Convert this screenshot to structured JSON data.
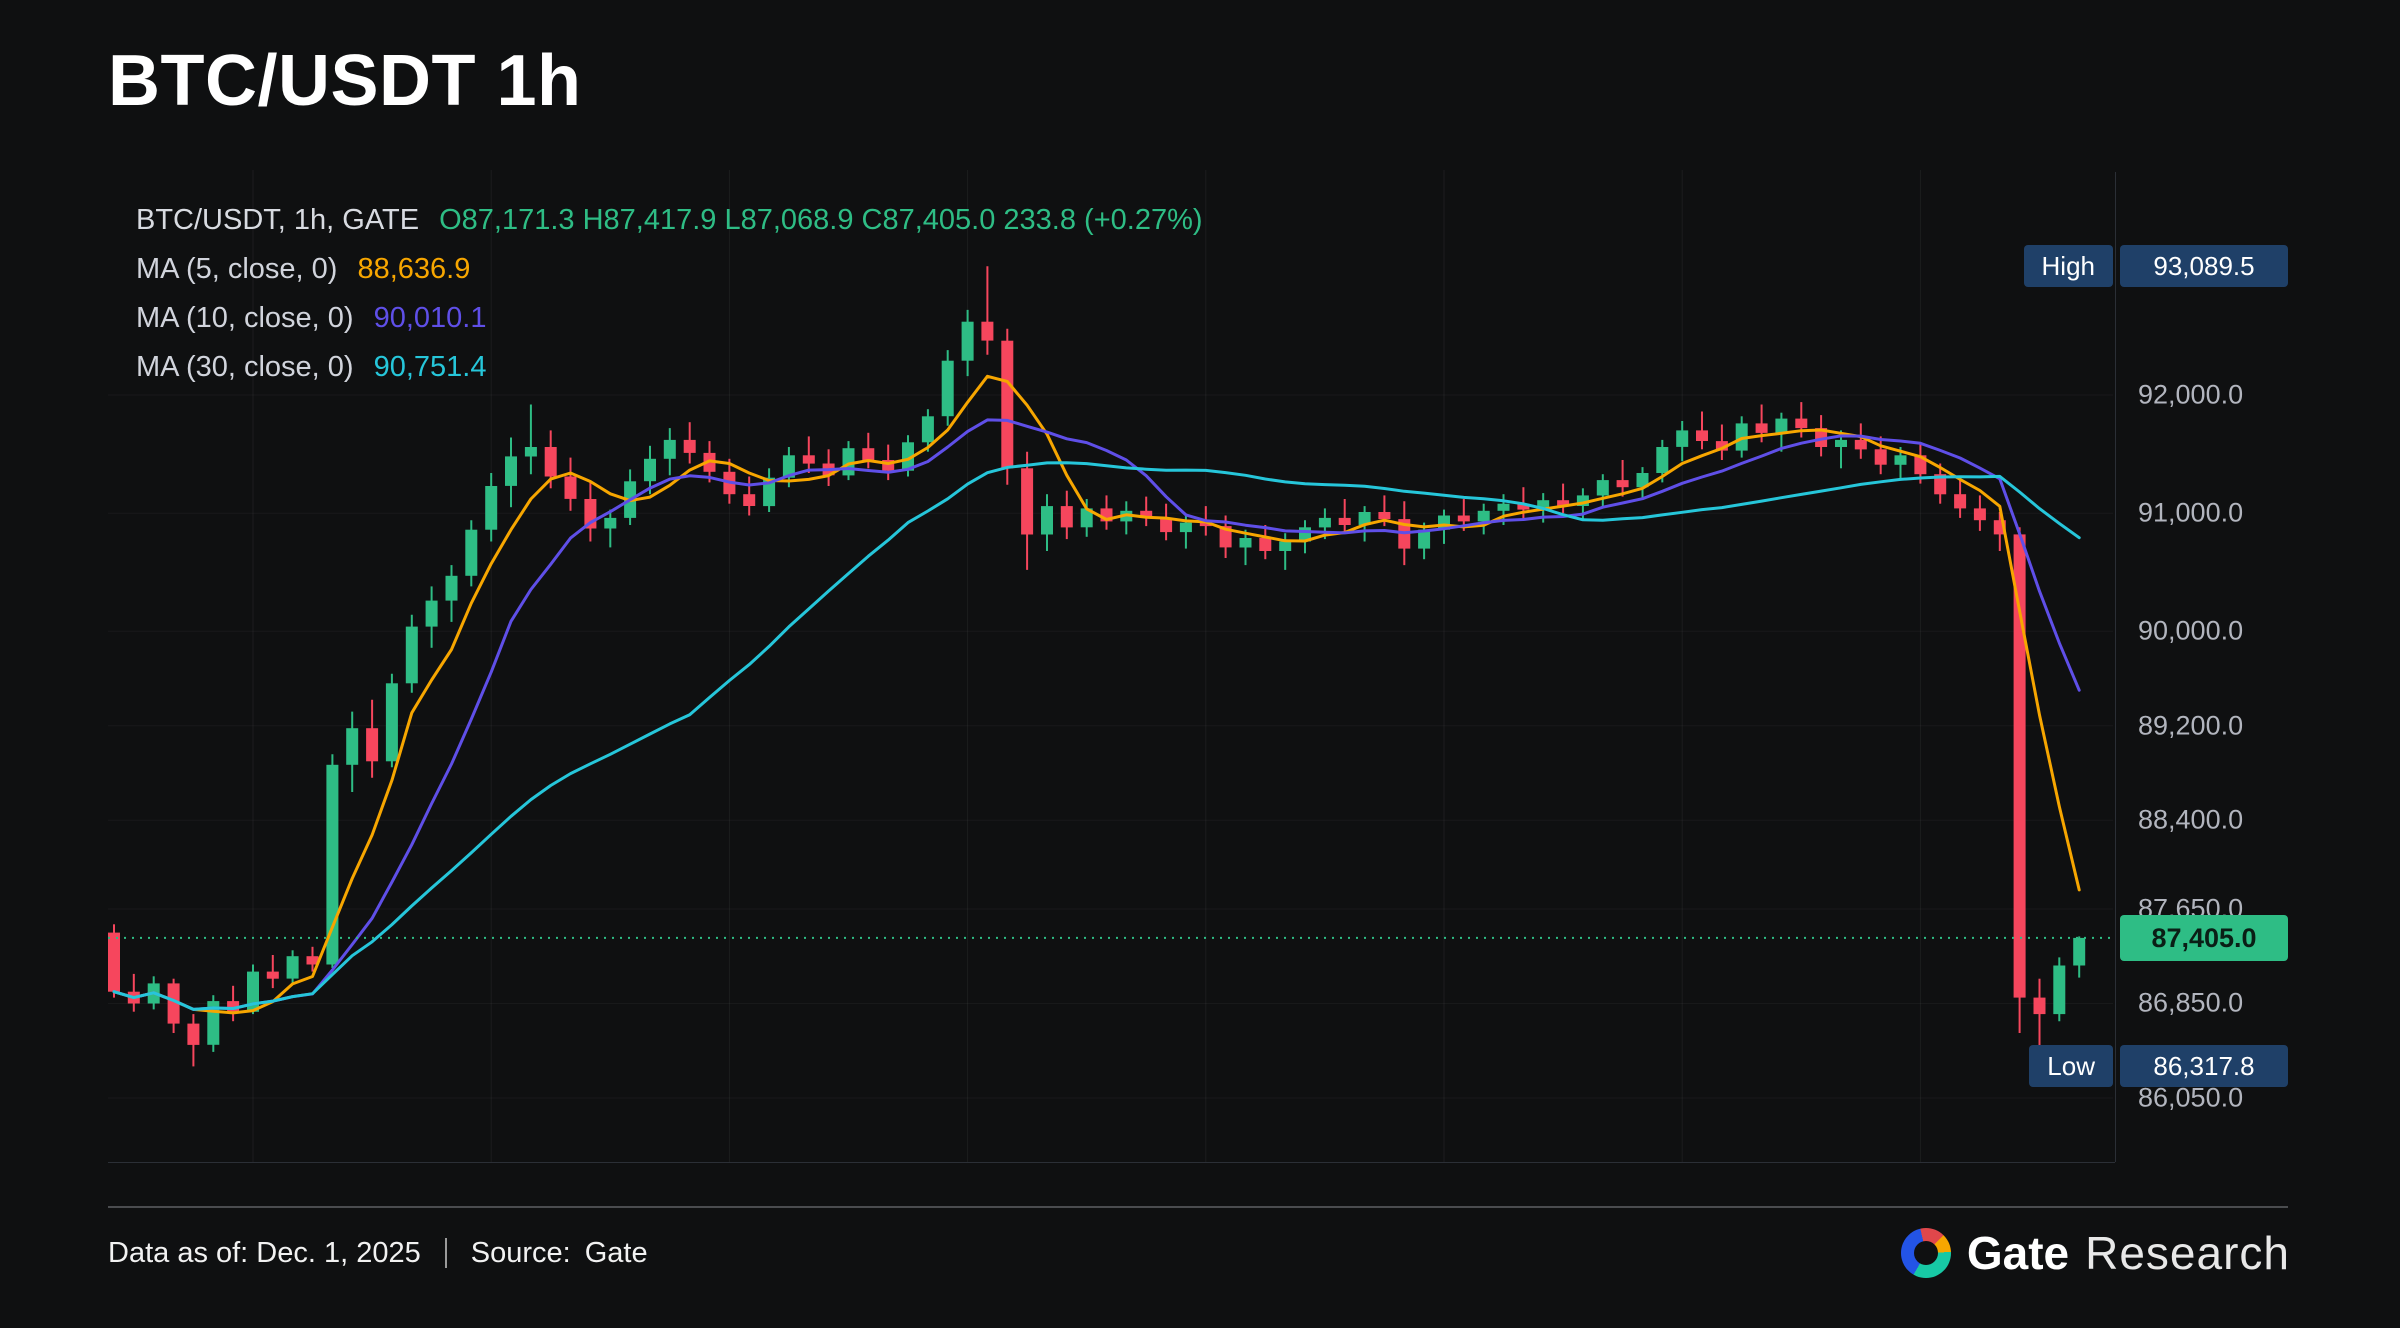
{
  "page": {
    "title": "BTC/USDT 1h"
  },
  "legend": {
    "symbol_line": "BTC/USDT, 1h, GATE",
    "ohlc_line": "O87,171.3  H87,417.9  L87,068.9  C87,405.0  233.8 (+0.27%)"
  },
  "footer": {
    "data_as_of": "Data as of: Dec. 1, 2025",
    "divider": "|",
    "source_label": "Source:",
    "source_value": "Gate",
    "brand_name": "Gate",
    "brand_suffix": "Research"
  },
  "chart_data": {
    "type": "candlestick",
    "symbol": "BTC/USDT",
    "interval": "1h",
    "exchange": "GATE",
    "ohlc_readout": {
      "open": 87171.3,
      "high": 87417.9,
      "low": 87068.9,
      "close": 87405.0,
      "change": 233.8,
      "change_pct": "+0.27%"
    },
    "up_color": "#2ebd85",
    "down_color": "#f6465d",
    "last_price": 87405.0,
    "session_high": 93089.5,
    "session_low": 86317.8,
    "ylim": [
      86050,
      93200
    ],
    "grid": "faint",
    "y_ticks": [
      {
        "price": 92000,
        "label": "92,000.0"
      },
      {
        "price": 91000,
        "label": "91,000.0"
      },
      {
        "price": 90000,
        "label": "90,000.0"
      },
      {
        "price": 89200,
        "label": "89,200.0"
      },
      {
        "price": 88400,
        "label": "88,400.0"
      },
      {
        "price": 87650,
        "label": "87,650.0"
      },
      {
        "price": 86850,
        "label": "86,850.0"
      },
      {
        "price": 86050,
        "label": "86,050.0"
      }
    ],
    "ma": [
      {
        "period": 5,
        "label": "MA (5, close, 0)",
        "value": "88,636.9",
        "color": "#f7a600"
      },
      {
        "period": 10,
        "label": "MA (10, close, 0)",
        "value": "90,010.1",
        "color": "#5f4fe8"
      },
      {
        "period": 30,
        "label": "MA (30, close, 0)",
        "value": "90,751.4",
        "color": "#26c6da"
      }
    ],
    "badges": {
      "bg": "#1f4068",
      "high": {
        "label": "High",
        "value": "93,089.5",
        "price": 93089.5
      },
      "low": {
        "label": "Low",
        "value": "86,317.8",
        "price": 86317.8
      },
      "last": {
        "value": "87,405.0",
        "price": 87405.0
      }
    },
    "candles": [
      [
        87450,
        87520,
        86900,
        86950
      ],
      [
        86950,
        87100,
        86780,
        86850
      ],
      [
        86850,
        87080,
        86800,
        87020
      ],
      [
        87020,
        87060,
        86600,
        86680
      ],
      [
        86680,
        86760,
        86317.8,
        86500
      ],
      [
        86500,
        86920,
        86440,
        86870
      ],
      [
        86870,
        87000,
        86700,
        86780
      ],
      [
        86780,
        87180,
        86760,
        87120
      ],
      [
        87120,
        87260,
        86980,
        87060
      ],
      [
        87060,
        87300,
        87020,
        87250
      ],
      [
        87250,
        87330,
        87120,
        87180
      ],
      [
        87180,
        88960,
        87150,
        88870
      ],
      [
        88870,
        89320,
        88640,
        89180
      ],
      [
        89180,
        89420,
        88760,
        88900
      ],
      [
        88900,
        89640,
        88850,
        89560
      ],
      [
        89560,
        90140,
        89480,
        90040
      ],
      [
        90040,
        90380,
        89860,
        90260
      ],
      [
        90260,
        90560,
        90080,
        90470
      ],
      [
        90470,
        90940,
        90380,
        90860
      ],
      [
        90860,
        91340,
        90760,
        91230
      ],
      [
        91230,
        91640,
        91050,
        91480
      ],
      [
        91480,
        91920,
        91330,
        91560
      ],
      [
        91560,
        91700,
        91210,
        91310
      ],
      [
        91310,
        91470,
        91020,
        91120
      ],
      [
        91120,
        91260,
        90760,
        90870
      ],
      [
        90870,
        91030,
        90710,
        90960
      ],
      [
        90960,
        91370,
        90900,
        91270
      ],
      [
        91270,
        91570,
        91160,
        91460
      ],
      [
        91460,
        91720,
        91320,
        91620
      ],
      [
        91620,
        91770,
        91420,
        91510
      ],
      [
        91510,
        91610,
        91260,
        91350
      ],
      [
        91350,
        91460,
        91080,
        91160
      ],
      [
        91160,
        91310,
        90980,
        91060
      ],
      [
        91060,
        91380,
        91010,
        91300
      ],
      [
        91300,
        91560,
        91220,
        91490
      ],
      [
        91490,
        91650,
        91340,
        91420
      ],
      [
        91420,
        91540,
        91230,
        91320
      ],
      [
        91320,
        91610,
        91280,
        91550
      ],
      [
        91550,
        91680,
        91380,
        91450
      ],
      [
        91450,
        91580,
        91280,
        91360
      ],
      [
        91360,
        91660,
        91310,
        91600
      ],
      [
        91600,
        91880,
        91520,
        91820
      ],
      [
        91820,
        92380,
        91740,
        92290
      ],
      [
        92290,
        92720,
        92160,
        92620
      ],
      [
        92620,
        93089.5,
        92340,
        92460
      ],
      [
        92460,
        92560,
        91240,
        91380
      ],
      [
        91380,
        91520,
        90520,
        90820
      ],
      [
        90820,
        91160,
        90680,
        91060
      ],
      [
        91060,
        91190,
        90780,
        90880
      ],
      [
        90880,
        91120,
        90800,
        91040
      ],
      [
        91040,
        91150,
        90860,
        90930
      ],
      [
        90930,
        91100,
        90820,
        91020
      ],
      [
        91020,
        91140,
        90890,
        90960
      ],
      [
        90960,
        91080,
        90770,
        90840
      ],
      [
        90840,
        90990,
        90700,
        90920
      ],
      [
        90920,
        91060,
        90810,
        90890
      ],
      [
        90890,
        90980,
        90620,
        90710
      ],
      [
        90710,
        90860,
        90560,
        90790
      ],
      [
        90790,
        90900,
        90610,
        90680
      ],
      [
        90680,
        90830,
        90520,
        90760
      ],
      [
        90760,
        90940,
        90660,
        90880
      ],
      [
        90880,
        91040,
        90780,
        90960
      ],
      [
        90960,
        91120,
        90840,
        90900
      ],
      [
        90900,
        91060,
        90760,
        91010
      ],
      [
        91010,
        91150,
        90890,
        90950
      ],
      [
        90950,
        91100,
        90560,
        90700
      ],
      [
        90700,
        90920,
        90610,
        90860
      ],
      [
        90860,
        91030,
        90740,
        90980
      ],
      [
        90980,
        91120,
        90850,
        90930
      ],
      [
        90930,
        91080,
        90820,
        91020
      ],
      [
        91020,
        91160,
        90900,
        91080
      ],
      [
        91080,
        91220,
        90950,
        91030
      ],
      [
        91030,
        91170,
        90920,
        91110
      ],
      [
        91110,
        91250,
        91000,
        91060
      ],
      [
        91060,
        91210,
        90950,
        91150
      ],
      [
        91150,
        91330,
        91060,
        91280
      ],
      [
        91280,
        91450,
        91140,
        91220
      ],
      [
        91220,
        91390,
        91120,
        91340
      ],
      [
        91340,
        91620,
        91260,
        91560
      ],
      [
        91560,
        91780,
        91440,
        91700
      ],
      [
        91700,
        91860,
        91540,
        91610
      ],
      [
        91610,
        91750,
        91450,
        91530
      ],
      [
        91530,
        91820,
        91470,
        91760
      ],
      [
        91760,
        91920,
        91600,
        91680
      ],
      [
        91680,
        91850,
        91520,
        91800
      ],
      [
        91800,
        91940,
        91640,
        91720
      ],
      [
        91720,
        91830,
        91480,
        91560
      ],
      [
        91560,
        91700,
        91380,
        91620
      ],
      [
        91620,
        91760,
        91460,
        91540
      ],
      [
        91540,
        91650,
        91330,
        91410
      ],
      [
        91410,
        91560,
        91280,
        91490
      ],
      [
        91490,
        91580,
        91250,
        91330
      ],
      [
        91330,
        91420,
        91080,
        91160
      ],
      [
        91160,
        91310,
        90960,
        91040
      ],
      [
        91040,
        91150,
        90850,
        90940
      ],
      [
        90940,
        91010,
        90680,
        90820
      ],
      [
        90820,
        90880,
        86600,
        86900
      ],
      [
        86900,
        87060,
        86450,
        86760
      ],
      [
        86760,
        87240,
        86700,
        87171.3
      ],
      [
        87171.3,
        87417.9,
        87068.9,
        87405.0
      ]
    ]
  }
}
